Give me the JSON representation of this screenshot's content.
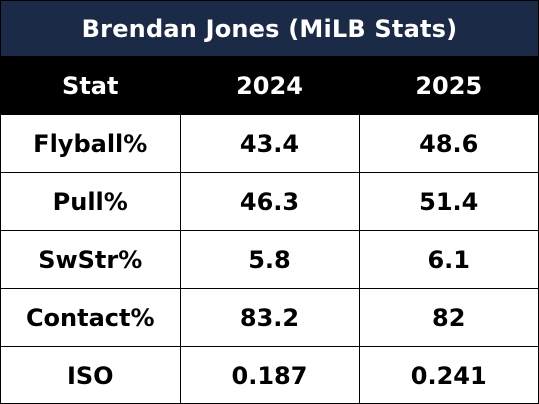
{
  "title": "Brendan Jones (MiLB Stats)",
  "header": {
    "stat": "Stat",
    "year1": "2024",
    "year2": "2025"
  },
  "rows": [
    {
      "stat": "Flyball%",
      "y2024": "43.4",
      "y2025": "48.6"
    },
    {
      "stat": "Pull%",
      "y2024": "46.3",
      "y2025": "51.4"
    },
    {
      "stat": "SwStr%",
      "y2024": "5.8",
      "y2025": "6.1"
    },
    {
      "stat": "Contact%",
      "y2024": "83.2",
      "y2025": "82"
    },
    {
      "stat": "ISO",
      "y2024": "0.187",
      "y2025": "0.241"
    }
  ],
  "colors": {
    "title_bg": "#1b2a46",
    "header_bg": "#000000",
    "header_text": "#ffffff",
    "body_bg": "#ffffff",
    "body_text": "#000000"
  }
}
